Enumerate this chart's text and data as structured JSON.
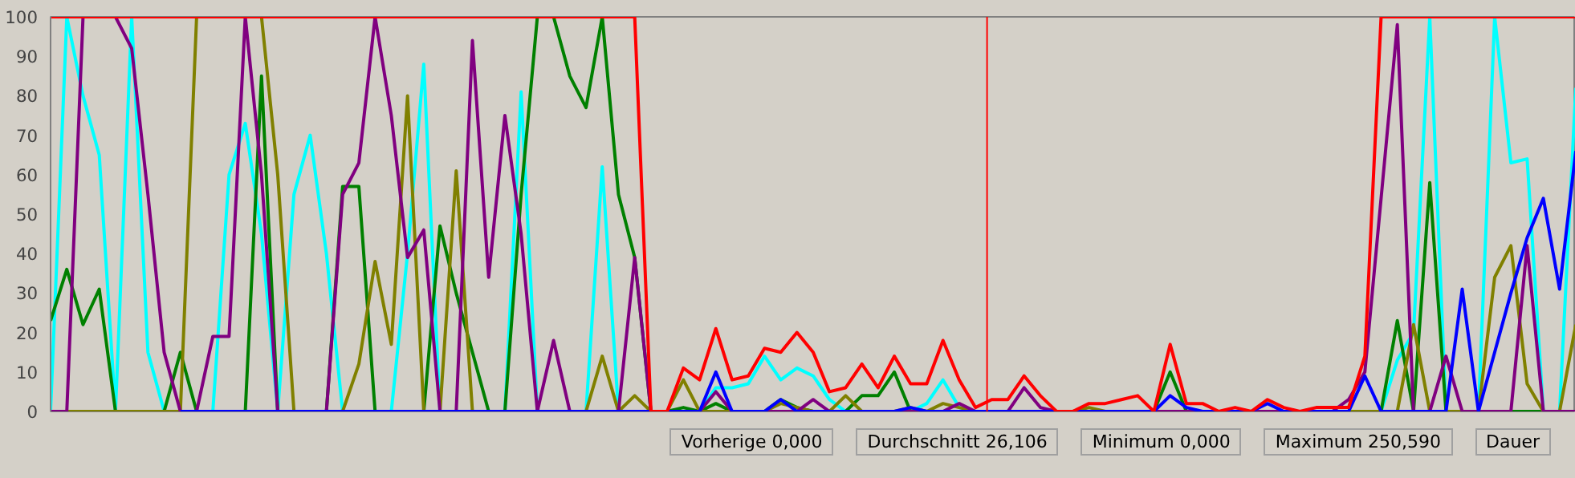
{
  "chart_data": {
    "type": "line",
    "ylim": [
      0,
      100
    ],
    "yticks": [
      0,
      10,
      20,
      30,
      40,
      50,
      60,
      70,
      80,
      90,
      100
    ],
    "grid": false,
    "marker": "none",
    "line_style": "solid",
    "categories": [
      null,
      null,
      null,
      null,
      null,
      null,
      null,
      null,
      null,
      null,
      null,
      null,
      null,
      null,
      null,
      null,
      null,
      null,
      null,
      null,
      null,
      null,
      null,
      null,
      null,
      null,
      null,
      null,
      null,
      null,
      null,
      null,
      null,
      null,
      null,
      null,
      null,
      null,
      null,
      null,
      null,
      null,
      null,
      null,
      null,
      null,
      null,
      null,
      null,
      null,
      null,
      null,
      null,
      null,
      null,
      null,
      null,
      null,
      null,
      null,
      null,
      null,
      null,
      null,
      null,
      null,
      null,
      null,
      null,
      null,
      null,
      null,
      null,
      null,
      null,
      null,
      null,
      null,
      null,
      null,
      null,
      null,
      null,
      null,
      null,
      null,
      null,
      null,
      null,
      null,
      null,
      null,
      null,
      null,
      null
    ],
    "series": [
      {
        "color": "#00ffff",
        "values": [
          0,
          100,
          80,
          65,
          0,
          100,
          15,
          0,
          0,
          0,
          0,
          60,
          73,
          45,
          0,
          55,
          70,
          40,
          0,
          0,
          0,
          0,
          40,
          88,
          0,
          0,
          0,
          0,
          0,
          81,
          0,
          0,
          0,
          0,
          62,
          0,
          0,
          0,
          0,
          0,
          0,
          6,
          6,
          7,
          14,
          8,
          11,
          9,
          3,
          0,
          0,
          0,
          0,
          0,
          2,
          8,
          1,
          0,
          0,
          0,
          0,
          0,
          0,
          0,
          0,
          0,
          0,
          0,
          0,
          0,
          0,
          0,
          0,
          0,
          0,
          0,
          0,
          0,
          0,
          0,
          0,
          0,
          0,
          13,
          20,
          100,
          0,
          0,
          0,
          100,
          63,
          64,
          0,
          0,
          82
        ]
      },
      {
        "color": "#008000",
        "values": [
          23,
          36,
          22,
          31,
          0,
          0,
          0,
          0,
          15,
          0,
          0,
          0,
          0,
          85,
          0,
          0,
          0,
          0,
          57,
          57,
          0,
          0,
          0,
          0,
          47,
          30,
          15,
          0,
          0,
          55,
          100,
          100,
          85,
          77,
          100,
          55,
          39,
          0,
          0,
          1,
          0,
          2,
          0,
          0,
          0,
          3,
          1,
          0,
          0,
          0,
          4,
          4,
          10,
          0,
          0,
          0,
          0,
          0,
          0,
          0,
          0,
          0,
          0,
          0,
          0,
          0,
          0,
          0,
          0,
          10,
          0,
          0,
          0,
          0,
          0,
          0,
          0,
          0,
          0,
          0,
          0,
          0,
          0,
          23,
          0,
          58,
          0,
          0,
          0,
          0,
          0,
          0,
          0,
          0,
          0
        ]
      },
      {
        "color": "#808000",
        "values": [
          null,
          0,
          0,
          0,
          0,
          0,
          0,
          0,
          0,
          100,
          null,
          null,
          null,
          100,
          60,
          0,
          0,
          0,
          0,
          12,
          38,
          17,
          80,
          0,
          0,
          61,
          0,
          0,
          0,
          0,
          0,
          0,
          0,
          0,
          14,
          0,
          4,
          0,
          0,
          8,
          0,
          0,
          0,
          0,
          0,
          2,
          1,
          0,
          0,
          4,
          0,
          0,
          0,
          1,
          0,
          2,
          1,
          0,
          0,
          0,
          0,
          0,
          0,
          0,
          1,
          0,
          0,
          0,
          0,
          0,
          0,
          0,
          0,
          0,
          0,
          0,
          0,
          0,
          0,
          0,
          0,
          0,
          0,
          0,
          22,
          0,
          0,
          0,
          0,
          34,
          42,
          7,
          0,
          0,
          22
        ]
      },
      {
        "color": "#800080",
        "values": [
          0,
          0,
          100,
          100,
          100,
          92,
          55,
          15,
          0,
          0,
          19,
          19,
          100,
          60,
          0,
          0,
          0,
          0,
          55,
          63,
          100,
          75,
          39,
          46,
          0,
          0,
          94,
          34,
          75,
          45,
          0,
          18,
          0,
          0,
          0,
          0,
          39,
          0,
          0,
          0,
          0,
          5,
          0,
          0,
          0,
          0,
          0,
          3,
          0,
          0,
          0,
          0,
          0,
          0,
          0,
          0,
          2,
          0,
          0,
          0,
          6,
          1,
          0,
          0,
          0,
          0,
          0,
          0,
          0,
          0,
          0,
          0,
          0,
          0,
          0,
          0,
          0,
          0,
          0,
          0,
          3,
          10,
          54,
          98,
          0,
          0,
          14,
          0,
          0,
          0,
          0,
          42,
          0,
          0,
          0
        ]
      },
      {
        "color": "#0000ff",
        "values": [
          null,
          null,
          null,
          null,
          null,
          null,
          null,
          null,
          0,
          0,
          0,
          0,
          0,
          0,
          0,
          0,
          0,
          0,
          0,
          0,
          0,
          0,
          0,
          0,
          0,
          0,
          0,
          0,
          0,
          0,
          0,
          0,
          0,
          0,
          0,
          0,
          0,
          0,
          0,
          0,
          0,
          10,
          0,
          0,
          0,
          3,
          0,
          0,
          0,
          0,
          0,
          0,
          0,
          1,
          0,
          0,
          0,
          0,
          0,
          0,
          0,
          0,
          0,
          0,
          0,
          0,
          0,
          0,
          0,
          4,
          1,
          0,
          0,
          0,
          0,
          2,
          0,
          0,
          0,
          0,
          0,
          9,
          0,
          0,
          0,
          0,
          0,
          31,
          0,
          15,
          30,
          44,
          54,
          31,
          66
        ]
      },
      {
        "color": "#ff0000",
        "values": [
          100,
          100,
          100,
          100,
          100,
          100,
          100,
          100,
          100,
          100,
          100,
          100,
          100,
          100,
          100,
          100,
          100,
          100,
          100,
          100,
          100,
          100,
          100,
          100,
          100,
          100,
          100,
          100,
          100,
          100,
          100,
          100,
          100,
          100,
          100,
          100,
          100,
          0,
          0,
          11,
          8,
          21,
          8,
          9,
          16,
          15,
          20,
          15,
          5,
          6,
          12,
          6,
          14,
          7,
          7,
          18,
          8,
          1,
          3,
          3,
          9,
          4,
          0,
          0,
          2,
          2,
          3,
          4,
          0,
          17,
          2,
          2,
          0,
          1,
          0,
          3,
          1,
          0,
          1,
          1,
          1,
          14,
          100,
          100,
          100,
          100,
          100,
          100,
          100,
          100,
          100,
          100,
          100,
          100,
          100
        ]
      }
    ],
    "annotations": [
      "Vorherige 0,000",
      "Durchschnitt 26,106",
      "Minimum 0,000",
      "Maximum 250,590",
      "Dauer"
    ]
  }
}
